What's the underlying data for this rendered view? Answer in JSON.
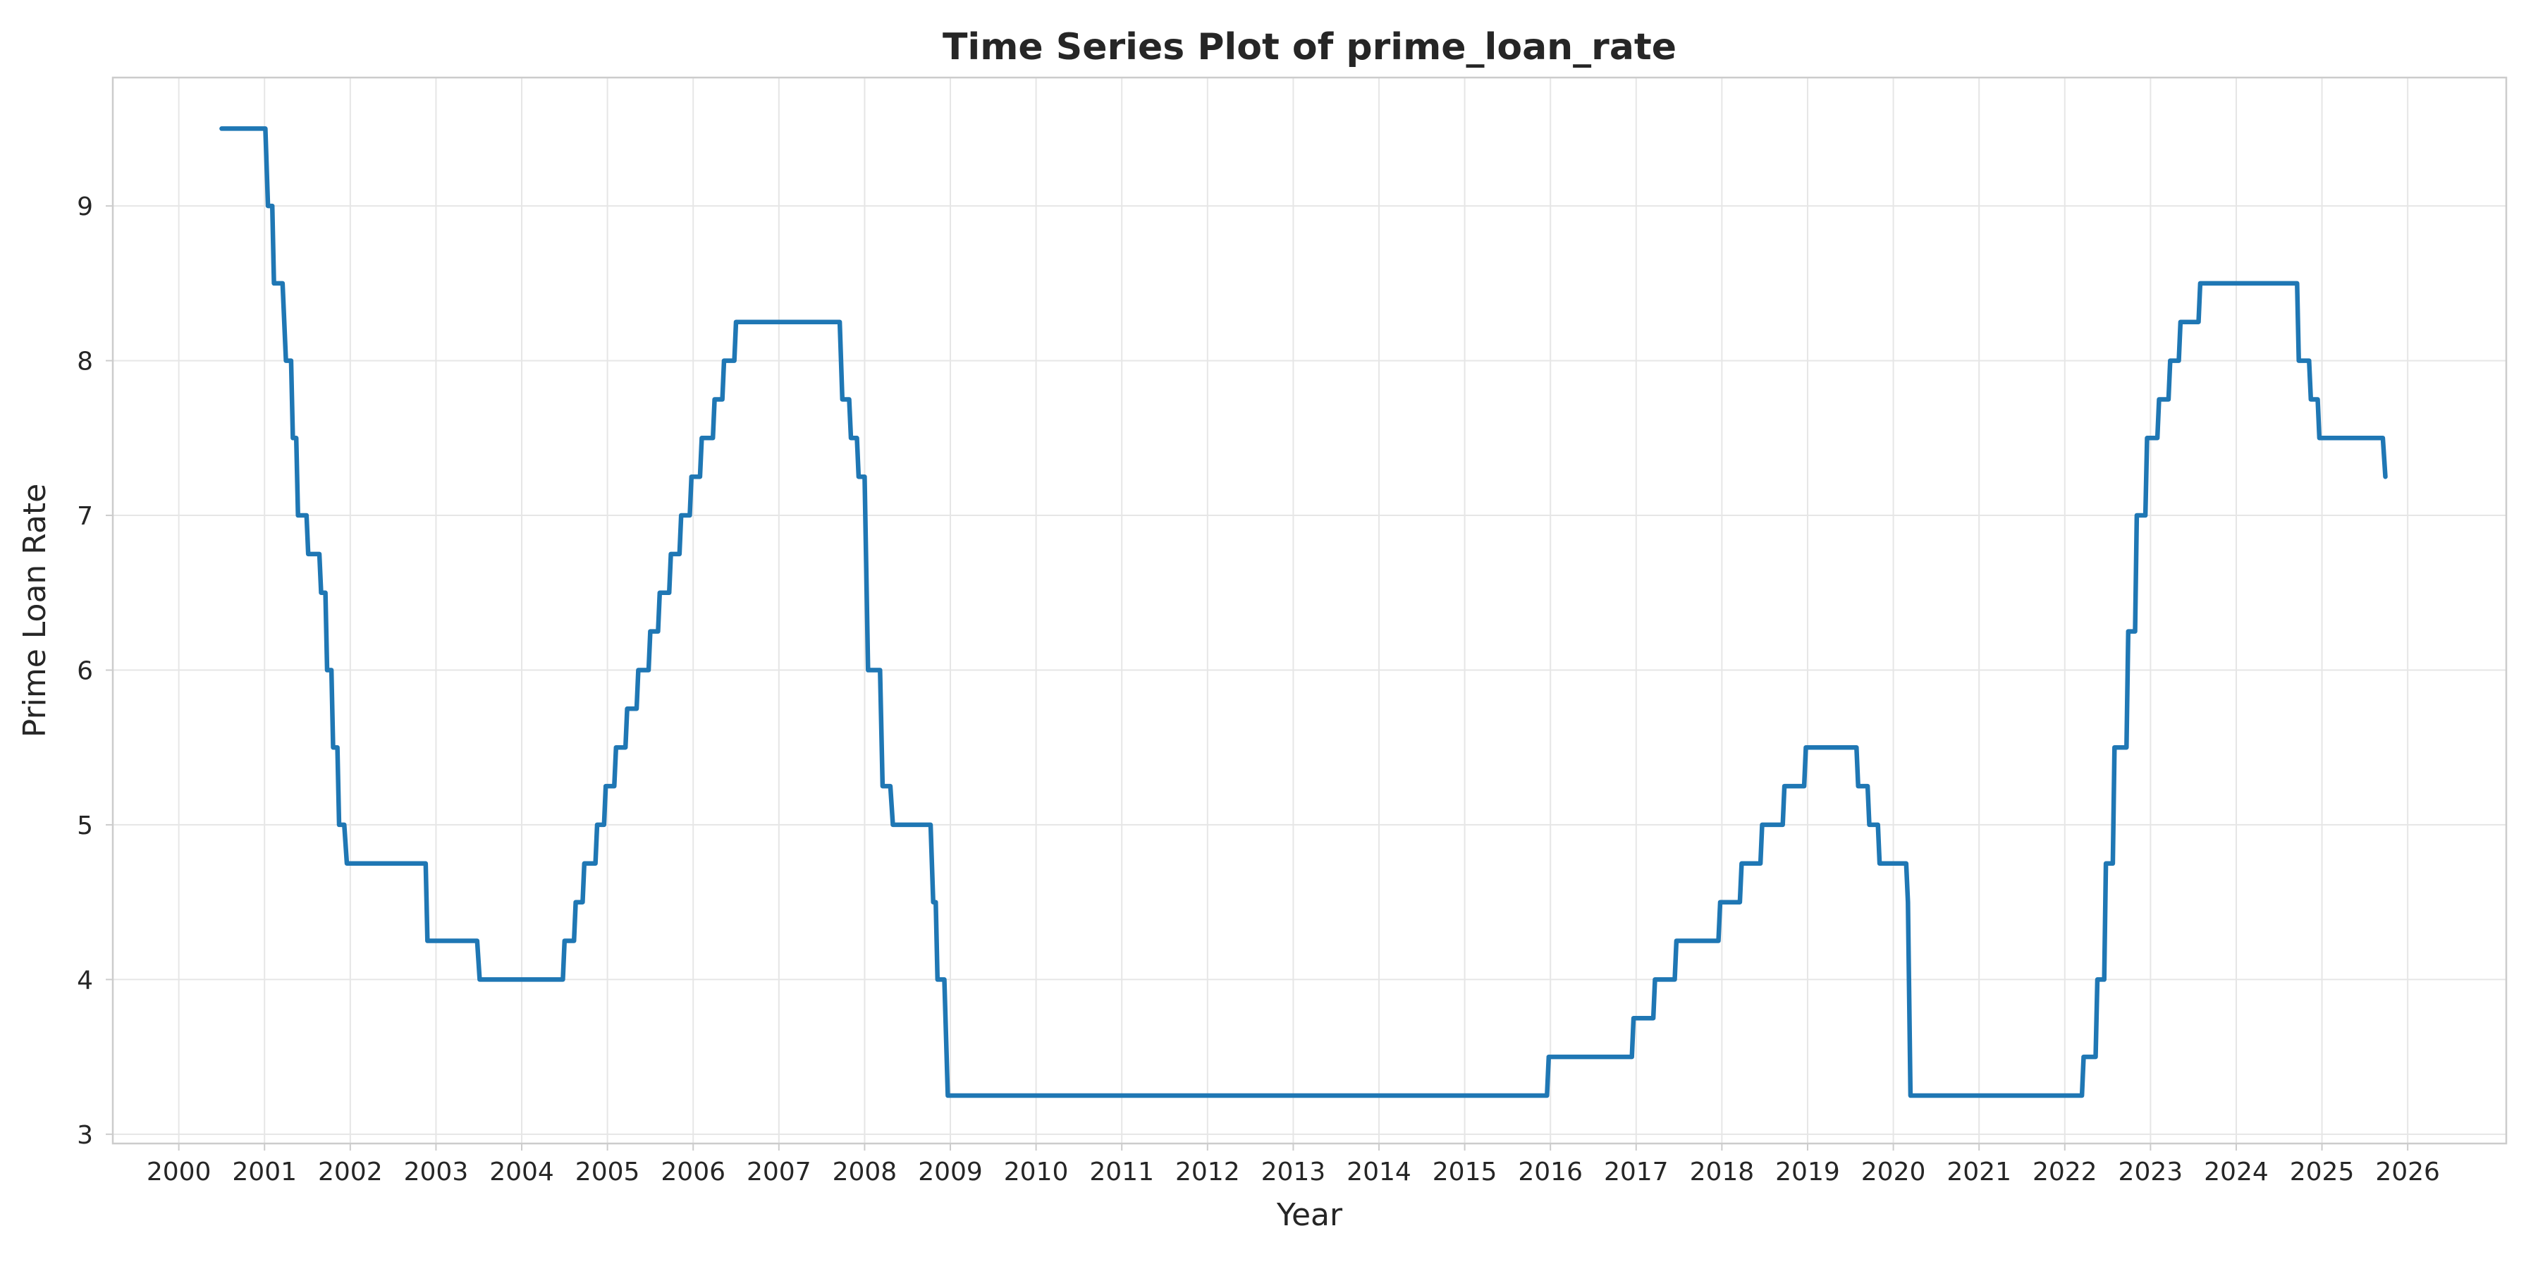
{
  "chart_data": {
    "type": "line",
    "title": "Time Series Plot of prime_loan_rate",
    "xlabel": "Year",
    "ylabel": "Prime Loan Rate",
    "xlim": [
      1999.23,
      2027.15
    ],
    "ylim": [
      2.94,
      9.83
    ],
    "x_ticks": [
      "2000",
      "2001",
      "2002",
      "2003",
      "2004",
      "2005",
      "2006",
      "2007",
      "2008",
      "2009",
      "2010",
      "2011",
      "2012",
      "2013",
      "2014",
      "2015",
      "2016",
      "2017",
      "2018",
      "2019",
      "2020",
      "2021",
      "2022",
      "2023",
      "2024",
      "2025",
      "2026"
    ],
    "y_ticks": [
      "3",
      "4",
      "5",
      "6",
      "7",
      "8",
      "9"
    ],
    "grid": true,
    "legend": "none",
    "series": [
      {
        "color": "#1f77b4",
        "points": [
          [
            2000.5,
            9.5
          ],
          [
            2001.01,
            9.5
          ],
          [
            2001.04,
            9.0
          ],
          [
            2001.09,
            9.0
          ],
          [
            2001.11,
            8.5
          ],
          [
            2001.21,
            8.5
          ],
          [
            2001.25,
            8.0
          ],
          [
            2001.31,
            8.0
          ],
          [
            2001.33,
            7.5
          ],
          [
            2001.37,
            7.5
          ],
          [
            2001.39,
            7.0
          ],
          [
            2001.49,
            7.0
          ],
          [
            2001.51,
            6.75
          ],
          [
            2001.64,
            6.75
          ],
          [
            2001.66,
            6.5
          ],
          [
            2001.71,
            6.5
          ],
          [
            2001.73,
            6.0
          ],
          [
            2001.78,
            6.0
          ],
          [
            2001.8,
            5.5
          ],
          [
            2001.85,
            5.5
          ],
          [
            2001.87,
            5.0
          ],
          [
            2001.93,
            5.0
          ],
          [
            2001.96,
            4.75
          ],
          [
            2002.88,
            4.75
          ],
          [
            2002.9,
            4.25
          ],
          [
            2003.48,
            4.25
          ],
          [
            2003.51,
            4.0
          ],
          [
            2004.48,
            4.0
          ],
          [
            2004.5,
            4.25
          ],
          [
            2004.61,
            4.25
          ],
          [
            2004.63,
            4.5
          ],
          [
            2004.71,
            4.5
          ],
          [
            2004.73,
            4.75
          ],
          [
            2004.86,
            4.75
          ],
          [
            2004.88,
            5.0
          ],
          [
            2004.96,
            5.0
          ],
          [
            2004.98,
            5.25
          ],
          [
            2005.08,
            5.25
          ],
          [
            2005.1,
            5.5
          ],
          [
            2005.21,
            5.5
          ],
          [
            2005.23,
            5.75
          ],
          [
            2005.34,
            5.75
          ],
          [
            2005.36,
            6.0
          ],
          [
            2005.48,
            6.0
          ],
          [
            2005.5,
            6.25
          ],
          [
            2005.59,
            6.25
          ],
          [
            2005.61,
            6.5
          ],
          [
            2005.72,
            6.5
          ],
          [
            2005.74,
            6.75
          ],
          [
            2005.84,
            6.75
          ],
          [
            2005.86,
            7.0
          ],
          [
            2005.96,
            7.0
          ],
          [
            2005.98,
            7.25
          ],
          [
            2006.08,
            7.25
          ],
          [
            2006.1,
            7.5
          ],
          [
            2006.23,
            7.5
          ],
          [
            2006.25,
            7.75
          ],
          [
            2006.34,
            7.75
          ],
          [
            2006.36,
            8.0
          ],
          [
            2006.48,
            8.0
          ],
          [
            2006.5,
            8.25
          ],
          [
            2007.71,
            8.25
          ],
          [
            2007.74,
            7.75
          ],
          [
            2007.82,
            7.75
          ],
          [
            2007.84,
            7.5
          ],
          [
            2007.91,
            7.5
          ],
          [
            2007.93,
            7.25
          ],
          [
            2008.0,
            7.25
          ],
          [
            2008.04,
            6.0
          ],
          [
            2008.18,
            6.0
          ],
          [
            2008.21,
            5.25
          ],
          [
            2008.3,
            5.25
          ],
          [
            2008.33,
            5.0
          ],
          [
            2008.77,
            5.0
          ],
          [
            2008.8,
            4.5
          ],
          [
            2008.83,
            4.5
          ],
          [
            2008.85,
            4.0
          ],
          [
            2008.93,
            4.0
          ],
          [
            2008.97,
            3.25
          ],
          [
            2015.96,
            3.25
          ],
          [
            2015.98,
            3.5
          ],
          [
            2016.95,
            3.5
          ],
          [
            2016.97,
            3.75
          ],
          [
            2017.2,
            3.75
          ],
          [
            2017.22,
            4.0
          ],
          [
            2017.45,
            4.0
          ],
          [
            2017.47,
            4.25
          ],
          [
            2017.96,
            4.25
          ],
          [
            2017.98,
            4.5
          ],
          [
            2018.21,
            4.5
          ],
          [
            2018.23,
            4.75
          ],
          [
            2018.45,
            4.75
          ],
          [
            2018.47,
            5.0
          ],
          [
            2018.71,
            5.0
          ],
          [
            2018.73,
            5.25
          ],
          [
            2018.96,
            5.25
          ],
          [
            2018.98,
            5.5
          ],
          [
            2019.57,
            5.5
          ],
          [
            2019.59,
            5.25
          ],
          [
            2019.7,
            5.25
          ],
          [
            2019.72,
            5.0
          ],
          [
            2019.82,
            5.0
          ],
          [
            2019.84,
            4.75
          ],
          [
            2020.15,
            4.75
          ],
          [
            2020.17,
            4.5
          ],
          [
            2020.2,
            3.25
          ],
          [
            2022.2,
            3.25
          ],
          [
            2022.22,
            3.5
          ],
          [
            2022.36,
            3.5
          ],
          [
            2022.38,
            4.0
          ],
          [
            2022.46,
            4.0
          ],
          [
            2022.48,
            4.75
          ],
          [
            2022.56,
            4.75
          ],
          [
            2022.58,
            5.5
          ],
          [
            2022.72,
            5.5
          ],
          [
            2022.74,
            6.25
          ],
          [
            2022.82,
            6.25
          ],
          [
            2022.84,
            7.0
          ],
          [
            2022.94,
            7.0
          ],
          [
            2022.96,
            7.5
          ],
          [
            2023.08,
            7.5
          ],
          [
            2023.1,
            7.75
          ],
          [
            2023.21,
            7.75
          ],
          [
            2023.23,
            8.0
          ],
          [
            2023.33,
            8.0
          ],
          [
            2023.35,
            8.25
          ],
          [
            2023.56,
            8.25
          ],
          [
            2023.58,
            8.5
          ],
          [
            2024.71,
            8.5
          ],
          [
            2024.73,
            8.0
          ],
          [
            2024.85,
            8.0
          ],
          [
            2024.87,
            7.75
          ],
          [
            2024.95,
            7.75
          ],
          [
            2024.97,
            7.5
          ],
          [
            2025.71,
            7.5
          ],
          [
            2025.74,
            7.25
          ]
        ]
      }
    ]
  }
}
